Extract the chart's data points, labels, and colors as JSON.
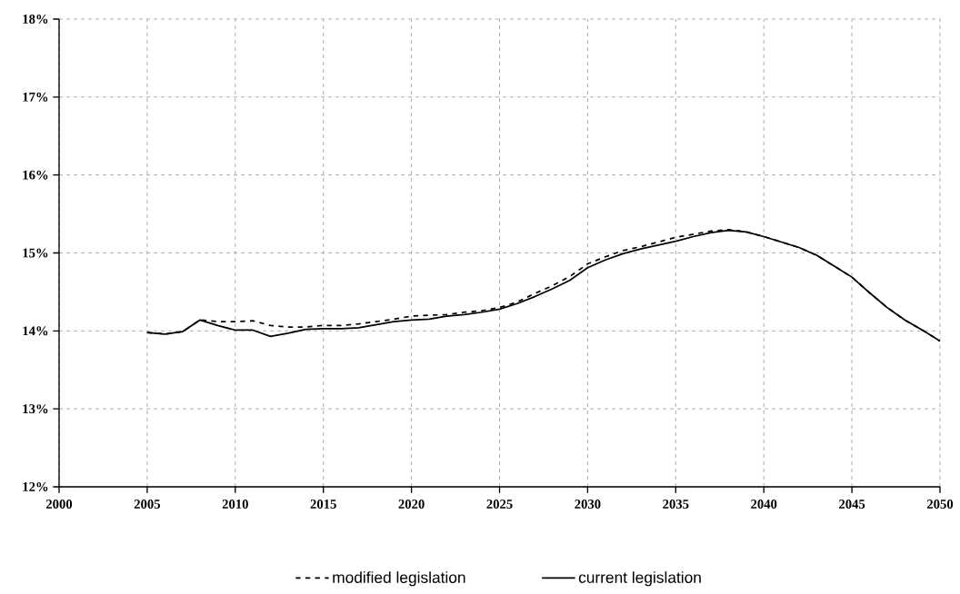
{
  "chart_data": {
    "type": "line",
    "x": [
      2005,
      2006,
      2007,
      2008,
      2009,
      2010,
      2011,
      2012,
      2013,
      2014,
      2015,
      2016,
      2017,
      2018,
      2019,
      2020,
      2021,
      2022,
      2023,
      2024,
      2025,
      2026,
      2027,
      2028,
      2029,
      2030,
      2031,
      2032,
      2033,
      2034,
      2035,
      2036,
      2037,
      2038,
      2039,
      2040,
      2041,
      2042,
      2043,
      2044,
      2045,
      2046,
      2047,
      2048,
      2049,
      2050
    ],
    "series": [
      {
        "name": "modified legislation",
        "color": "#000000",
        "line_style": "dashed",
        "values": [
          13.98,
          13.96,
          13.99,
          14.14,
          14.12,
          14.12,
          14.13,
          14.07,
          14.05,
          14.05,
          14.07,
          14.07,
          14.09,
          14.12,
          14.15,
          14.19,
          14.2,
          14.21,
          14.24,
          14.26,
          14.3,
          14.37,
          14.48,
          14.58,
          14.7,
          14.86,
          14.95,
          15.03,
          15.08,
          15.14,
          15.2,
          15.24,
          15.28,
          15.3,
          15.27,
          15.21,
          15.14,
          15.07,
          14.97,
          14.83,
          14.69,
          14.49,
          14.3,
          14.14,
          14.01,
          13.87
        ]
      },
      {
        "name": "current legislation",
        "color": "#000000",
        "line_style": "solid",
        "values": [
          13.98,
          13.96,
          13.99,
          14.14,
          14.07,
          14.01,
          14.01,
          13.93,
          13.97,
          14.02,
          14.03,
          14.03,
          14.04,
          14.08,
          14.12,
          14.14,
          14.15,
          14.19,
          14.21,
          14.24,
          14.28,
          14.35,
          14.44,
          14.54,
          14.65,
          14.81,
          14.91,
          14.99,
          15.05,
          15.1,
          15.15,
          15.21,
          15.26,
          15.29,
          15.27,
          15.21,
          15.14,
          15.07,
          14.97,
          14.83,
          14.69,
          14.49,
          14.3,
          14.14,
          14.01,
          13.87
        ]
      }
    ],
    "xlim": [
      2000,
      2050
    ],
    "ylim": [
      12,
      18
    ],
    "xticks": [
      2000,
      2005,
      2010,
      2015,
      2020,
      2025,
      2030,
      2035,
      2040,
      2045,
      2050
    ],
    "yticks": [
      {
        "value": 12,
        "label": "12%"
      },
      {
        "value": 13,
        "label": "13%"
      },
      {
        "value": 14,
        "label": "14%"
      },
      {
        "value": 15,
        "label": "15%"
      },
      {
        "value": 16,
        "label": "16%"
      },
      {
        "value": 17,
        "label": "17%"
      },
      {
        "value": 18,
        "label": "18%"
      }
    ],
    "grid": true,
    "legend": "bottom",
    "marker": "none"
  }
}
